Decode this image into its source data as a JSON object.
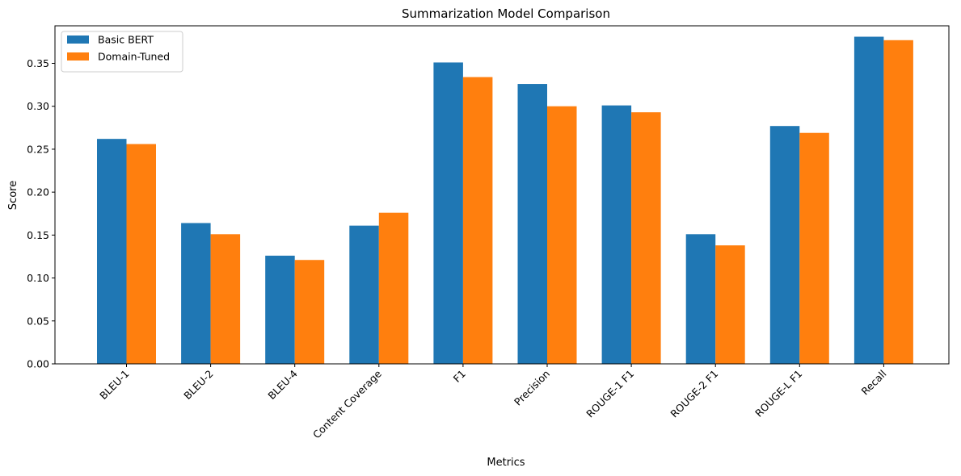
{
  "chart_data": {
    "type": "bar",
    "title": "Summarization Model Comparison",
    "xlabel": "Metrics",
    "ylabel": "Score",
    "categories": [
      "BLEU-1",
      "BLEU-2",
      "BLEU-4",
      "Content Coverage",
      "F1",
      "Precision",
      "ROUGE-1 F1",
      "ROUGE-2 F1",
      "ROUGE-L F1",
      "Recall"
    ],
    "series": [
      {
        "name": "Basic BERT",
        "color": "#1f77b4",
        "values": [
          0.262,
          0.164,
          0.126,
          0.161,
          0.351,
          0.326,
          0.301,
          0.151,
          0.277,
          0.381
        ]
      },
      {
        "name": "Domain-Tuned",
        "color": "#ff7f0e",
        "values": [
          0.256,
          0.151,
          0.121,
          0.176,
          0.334,
          0.3,
          0.293,
          0.138,
          0.269,
          0.377
        ]
      }
    ],
    "ylim": [
      0,
      0.3937
    ],
    "yticks": [
      "0.00",
      "0.05",
      "0.10",
      "0.15",
      "0.20",
      "0.25",
      "0.30",
      "0.35"
    ],
    "legend_position": "top-left",
    "grid": false
  }
}
